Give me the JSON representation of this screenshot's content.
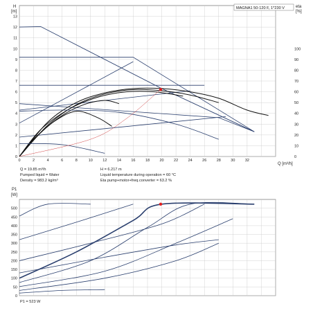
{
  "chart_data": [
    {
      "type": "line",
      "model": "MAGNA1 50-120 F, 1*230 V",
      "ylabel": "H",
      "ylabel_unit": "[m]",
      "y2label": "eta",
      "y2label_unit": "[%]",
      "xlabel": "Q [m³/h]",
      "xlim": [
        0,
        36
      ],
      "ylim": [
        0,
        14
      ],
      "y2lim": [
        0,
        140
      ],
      "x_ticks": [
        "0",
        "2",
        "4",
        "6",
        "8",
        "10",
        "12",
        "14",
        "16",
        "18",
        "20",
        "22",
        "24",
        "26",
        "28",
        "30",
        "32"
      ],
      "y_ticks": [
        "0",
        "1",
        "2",
        "3",
        "4",
        "5",
        "6",
        "7",
        "8",
        "9",
        "10",
        "11",
        "12",
        "13"
      ],
      "y2_ticks": [
        "0",
        "10",
        "20",
        "30",
        "40",
        "50",
        "60",
        "70",
        "80",
        "90",
        "100"
      ],
      "grid": true,
      "duty_point": {
        "x": 19.85,
        "y": 6.217
      },
      "series": [
        {
          "kind": "max-curve",
          "points": [
            [
              0,
              12
            ],
            [
              3,
              12.05
            ],
            [
              20,
              6.3
            ],
            [
              33,
              2.3
            ]
          ]
        },
        {
          "kind": "prop-pressure",
          "points": [
            [
              0,
              9.2
            ],
            [
              16,
              9.2
            ],
            [
              33,
              2.3
            ]
          ]
        },
        {
          "kind": "prop-pressure",
          "points": [
            [
              0,
              6.6
            ],
            [
              26,
              6.6
            ]
          ]
        },
        {
          "kind": "const-pressure",
          "points": [
            [
              0,
              4.9
            ],
            [
              28,
              3.6
            ],
            [
              33,
              2.3
            ]
          ]
        },
        {
          "kind": "const-pressure",
          "points": [
            [
              0,
              3.1
            ],
            [
              16,
              8.8
            ]
          ]
        },
        {
          "kind": "const-pressure",
          "points": [
            [
              0,
              1.8
            ],
            [
              29,
              3.7
            ]
          ]
        },
        {
          "kind": "const-pressure",
          "points": [
            [
              0,
              4.3
            ],
            [
              24,
              6.1
            ]
          ]
        },
        {
          "kind": "eff",
          "points": [
            [
              0,
              0
            ],
            [
              4,
              3.2
            ],
            [
              8,
              5
            ],
            [
              12,
              5.9
            ],
            [
              16,
              6.3
            ],
            [
              20,
              6.3
            ],
            [
              24,
              6
            ],
            [
              28,
              5.4
            ],
            [
              32,
              4.3
            ],
            [
              35,
              3.8
            ]
          ]
        },
        {
          "kind": "eff",
          "points": [
            [
              0,
              0
            ],
            [
              4,
              2.9
            ],
            [
              8,
              4.8
            ],
            [
              12,
              5.8
            ],
            [
              16,
              6.2
            ],
            [
              20,
              6.1
            ],
            [
              24,
              5.7
            ],
            [
              28,
              5
            ]
          ]
        },
        {
          "kind": "eff",
          "points": [
            [
              0,
              0
            ],
            [
              3,
              2.5
            ],
            [
              7,
              4.4
            ],
            [
              11,
              5.5
            ],
            [
              15,
              6
            ],
            [
              19,
              6
            ],
            [
              23,
              5.6
            ]
          ]
        },
        {
          "kind": "eff",
          "points": [
            [
              0,
              0
            ],
            [
              3,
              2.2
            ],
            [
              6,
              3.8
            ],
            [
              9,
              4.8
            ],
            [
              12,
              5.2
            ],
            [
              14,
              4.9
            ]
          ]
        },
        {
          "kind": "eff",
          "points": [
            [
              0,
              0
            ],
            [
              2,
              1.6
            ],
            [
              5,
              3.3
            ],
            [
              8,
              4.2
            ],
            [
              11,
              3.6
            ],
            [
              13,
              2.8
            ]
          ]
        },
        {
          "kind": "part-load",
          "points": [
            [
              0,
              4.2
            ],
            [
              6,
              4.3
            ],
            [
              14,
              4.1
            ],
            [
              22,
              3
            ],
            [
              28,
              1.6
            ]
          ]
        },
        {
          "kind": "part-load",
          "points": [
            [
              0,
              1.2
            ],
            [
              6,
              1.1
            ],
            [
              12,
              0.3
            ]
          ]
        },
        {
          "kind": "system-curve",
          "points": [
            [
              0,
              0
            ],
            [
              10,
              1.6
            ],
            [
              15,
              3.5
            ],
            [
              19.85,
              6.217
            ]
          ]
        }
      ]
    },
    {
      "type": "line",
      "ylabel": "P1",
      "ylabel_unit": "[W]",
      "xlim": [
        0,
        36
      ],
      "ylim": [
        0,
        550
      ],
      "y_ticks": [
        "0",
        "50",
        "100",
        "150",
        "200",
        "250",
        "300",
        "350",
        "400",
        "450",
        "500"
      ],
      "grid": true,
      "duty_point": {
        "x": 19.85,
        "y": 523
      },
      "series": [
        {
          "kind": "max-power",
          "points": [
            [
              0,
              100
            ],
            [
              8,
              250
            ],
            [
              16,
              430
            ],
            [
              20,
              523
            ],
            [
              33,
              523
            ]
          ]
        },
        {
          "kind": "power",
          "points": [
            [
              0,
              75
            ],
            [
              10,
              200
            ],
            [
              18,
              390
            ],
            [
              24,
              523
            ],
            [
              33,
              523
            ]
          ]
        },
        {
          "kind": "power",
          "points": [
            [
              0,
              52
            ],
            [
              12,
              140
            ],
            [
              22,
              300
            ],
            [
              30,
              440
            ]
          ]
        },
        {
          "kind": "power",
          "points": [
            [
              0,
              30
            ],
            [
              12,
              100
            ],
            [
              22,
              200
            ],
            [
              28,
              300
            ]
          ]
        },
        {
          "kind": "power",
          "points": [
            [
              0,
              455
            ],
            [
              4,
              523
            ],
            [
              10,
              523
            ]
          ]
        },
        {
          "kind": "power",
          "points": [
            [
              0,
              320
            ],
            [
              8,
              420
            ],
            [
              16,
              523
            ]
          ]
        },
        {
          "kind": "power",
          "points": [
            [
              0,
              200
            ],
            [
              10,
              300
            ],
            [
              20,
              410
            ],
            [
              26,
              523
            ]
          ]
        },
        {
          "kind": "power",
          "points": [
            [
              0,
              130
            ],
            [
              12,
              220
            ],
            [
              22,
              290
            ],
            [
              28,
              320
            ]
          ]
        },
        {
          "kind": "power",
          "points": [
            [
              0,
              15
            ],
            [
              6,
              30
            ],
            [
              12,
              35
            ]
          ]
        }
      ]
    }
  ],
  "info": {
    "q": "Q = 19.85 m³/h",
    "liquid": "Pumped liquid = Water",
    "density": "Density = 983.2 kg/m³",
    "h": "H = 6.217 m",
    "temp": "Liquid temperature during operation = 60 °C",
    "eta": "Eta pump+motor+freq.converter = 63.2 %",
    "p1": "P1 = 523 W"
  },
  "colors": {
    "curve": "#2a3f6e",
    "dark": "#111111",
    "system": "#d04040",
    "point": "#e02020",
    "grid": "#c8c8c8"
  }
}
